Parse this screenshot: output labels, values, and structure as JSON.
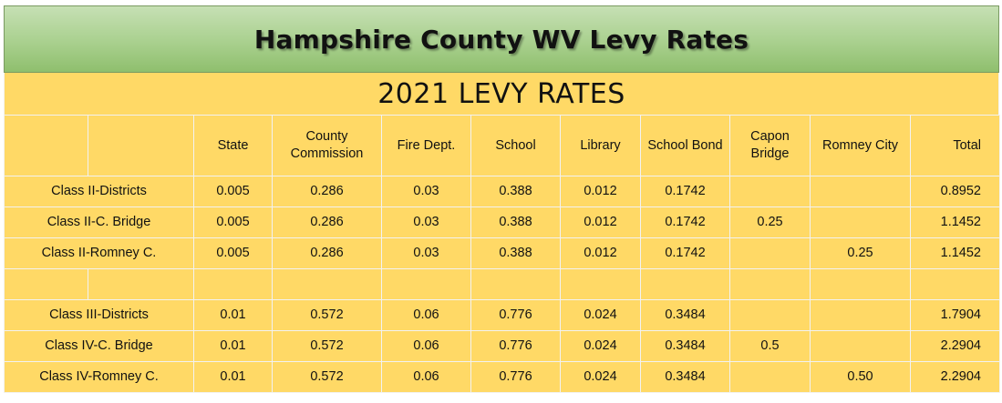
{
  "banner": {
    "title": "Hampshire County WV Levy Rates"
  },
  "year_title": "2021 LEVY RATES",
  "columns": [
    "State",
    "County Commission",
    "Fire Dept.",
    "School",
    "Library",
    "School Bond",
    "Capon Bridge",
    "Romney City",
    "Total"
  ],
  "rows": [
    {
      "label": "Class II-Districts",
      "state": "0.005",
      "county": "0.286",
      "fire": "0.03",
      "school": "0.388",
      "library": "0.012",
      "bond": "0.1742",
      "capon": "",
      "romney": "",
      "total": "0.8952"
    },
    {
      "label": "Class II-C. Bridge",
      "state": "0.005",
      "county": "0.286",
      "fire": "0.03",
      "school": "0.388",
      "library": "0.012",
      "bond": "0.1742",
      "capon": "0.25",
      "romney": "",
      "total": "1.1452"
    },
    {
      "label": "Class II-Romney C.",
      "state": "0.005",
      "county": "0.286",
      "fire": "0.03",
      "school": "0.388",
      "library": "0.012",
      "bond": "0.1742",
      "capon": "",
      "romney": "0.25",
      "total": "1.1452"
    },
    {
      "label": "Class III-Districts",
      "state": "0.01",
      "county": "0.572",
      "fire": "0.06",
      "school": "0.776",
      "library": "0.024",
      "bond": "0.3484",
      "capon": "",
      "romney": "",
      "total": "1.7904"
    },
    {
      "label": "Class IV-C. Bridge",
      "state": "0.01",
      "county": "0.572",
      "fire": "0.06",
      "school": "0.776",
      "library": "0.024",
      "bond": "0.3484",
      "capon": "0.5",
      "romney": "",
      "total": "2.2904"
    },
    {
      "label": "Class IV-Romney C.",
      "state": "0.01",
      "county": "0.572",
      "fire": "0.06",
      "school": "0.776",
      "library": "0.024",
      "bond": "0.3484",
      "capon": "",
      "romney": "0.50",
      "total": "2.2904"
    }
  ],
  "colors": {
    "table_fill": "#ffd966",
    "banner_fill": "#a9d08e",
    "grid_line": "#f2f2f2"
  }
}
